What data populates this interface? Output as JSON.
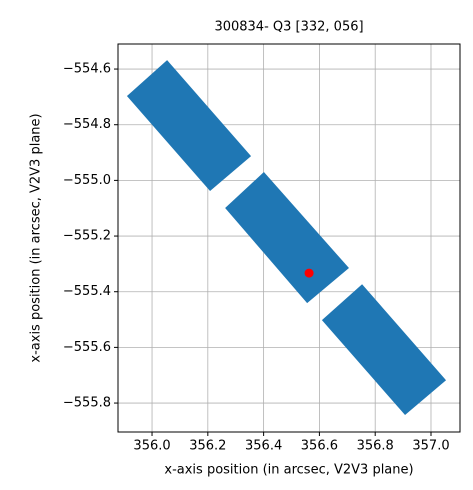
{
  "chart_data": {
    "type": "polygon",
    "title": "300834- Q3 [332, 056]",
    "xlabel": "x-axis position (in arcsec, V2V3 plane)",
    "ylabel": "x-axis position (in arcsec, V2V3 plane)",
    "xlim": [
      355.878,
      357.104
    ],
    "ylim": [
      -555.904,
      -554.51
    ],
    "xticks": [
      {
        "value": 356.0,
        "label": "356.0"
      },
      {
        "value": 356.2,
        "label": "356.2"
      },
      {
        "value": 356.4,
        "label": "356.4"
      },
      {
        "value": 356.6,
        "label": "356.6"
      },
      {
        "value": 356.8,
        "label": "356.8"
      },
      {
        "value": 357.0,
        "label": "357.0"
      }
    ],
    "yticks": [
      {
        "value": -554.6,
        "label": "−554.6"
      },
      {
        "value": -554.8,
        "label": "−554.8"
      },
      {
        "value": -555.0,
        "label": "−555.0"
      },
      {
        "value": -555.2,
        "label": "−555.2"
      },
      {
        "value": -555.4,
        "label": "−555.4"
      },
      {
        "value": -555.6,
        "label": "−555.6"
      },
      {
        "value": -555.8,
        "label": "−555.8"
      }
    ],
    "grid": true,
    "color": "#1f77b4",
    "polygons": [
      {
        "x": [
          355.91,
          356.054,
          356.355,
          356.208
        ],
        "y": [
          -554.697,
          -554.568,
          -554.913,
          -555.038
        ]
      },
      {
        "x": [
          356.262,
          356.401,
          356.706,
          356.556
        ],
        "y": [
          -555.099,
          -554.97,
          -555.315,
          -555.441
        ]
      },
      {
        "x": [
          356.609,
          356.753,
          357.054,
          356.907
        ],
        "y": [
          -555.502,
          -555.373,
          -555.718,
          -555.843
        ]
      }
    ],
    "point": {
      "x": 356.563,
      "y": -555.333,
      "color": "#ff0000"
    }
  }
}
